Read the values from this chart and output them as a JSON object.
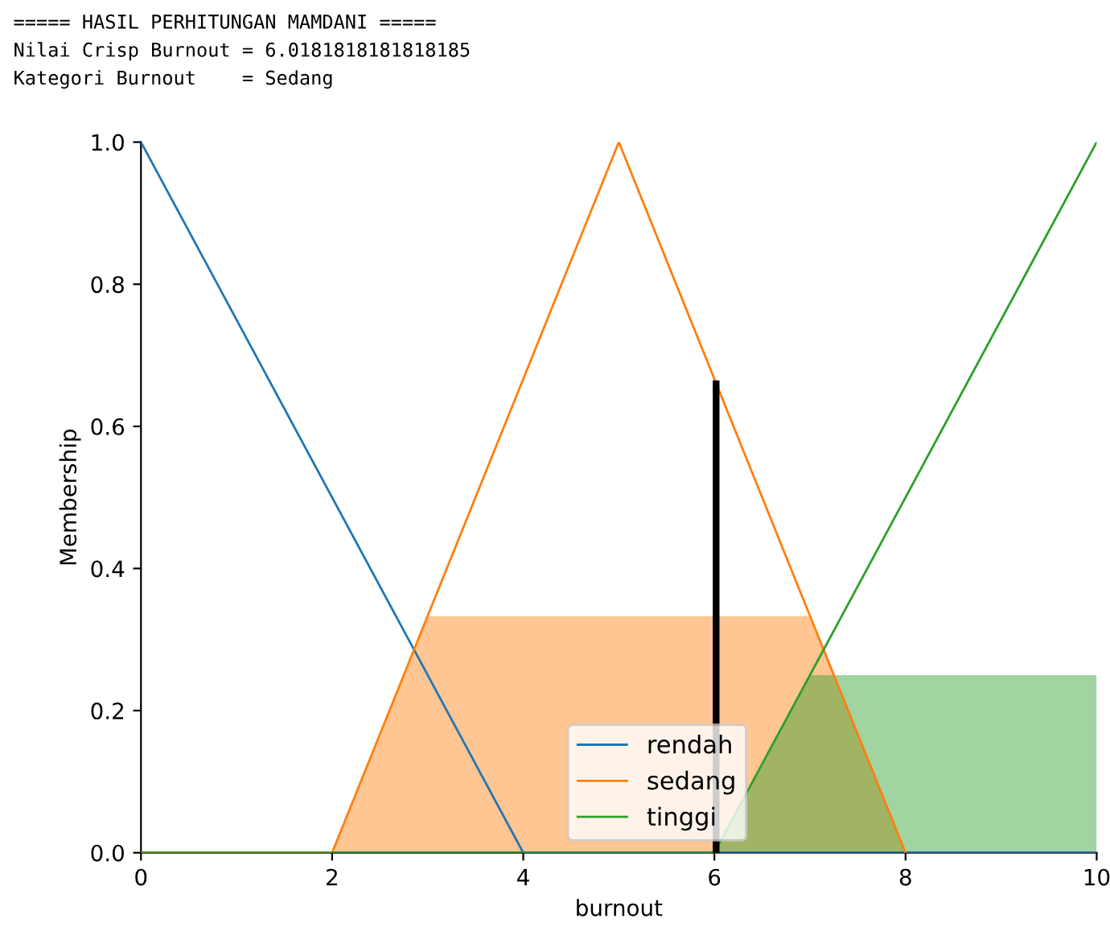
{
  "chart_data": {
    "type": "line",
    "xlabel": "burnout",
    "ylabel": "Membership",
    "annotations": [
      "===== HASIL PERHITUNGAN MAMDANI =====",
      "Nilai Crisp Burnout = 6.0181818181818185",
      "Kategori Burnout    = Sedang"
    ],
    "xlim": [
      0,
      10
    ],
    "ylim": [
      0,
      1
    ],
    "xticks": [
      0,
      2,
      4,
      6,
      8,
      10
    ],
    "yticks": [
      {
        "value": 0,
        "label": "0.0"
      },
      {
        "value": 0.2,
        "label": "0.2"
      },
      {
        "value": 0.4,
        "label": "0.4"
      },
      {
        "value": 0.6,
        "label": "0.6"
      },
      {
        "value": 0.8,
        "label": "0.8"
      },
      {
        "value": 1,
        "label": "1.0"
      }
    ],
    "legend": "bottom",
    "grid": false,
    "series": [
      {
        "type": "area",
        "color": "#ff7f0e",
        "x": [
          2,
          3,
          7,
          8
        ],
        "values": [
          0,
          0.333,
          0.333,
          0
        ]
      },
      {
        "type": "area",
        "color": "#2ca02c",
        "x": [
          6,
          7,
          10
        ],
        "values": [
          0,
          0.25,
          0.25
        ]
      },
      {
        "name": "rendah",
        "color": "#1f77b4",
        "x": [
          0,
          4,
          10
        ],
        "values": [
          1,
          0,
          0
        ]
      },
      {
        "name": "sedang",
        "color": "#ff7f0e",
        "x": [
          0,
          2,
          5,
          8
        ],
        "values": [
          0,
          0,
          1,
          0
        ]
      },
      {
        "name": "tinggi",
        "color": "#2ca02c",
        "x": [
          0,
          6,
          10
        ],
        "values": [
          0,
          0,
          1
        ]
      },
      {
        "color": "#000000",
        "x": [
          6.018,
          6.018
        ],
        "values": [
          0,
          0.66
        ]
      }
    ]
  }
}
